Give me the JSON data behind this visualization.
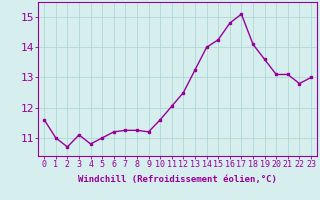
{
  "x": [
    0,
    1,
    2,
    3,
    4,
    5,
    6,
    7,
    8,
    9,
    10,
    11,
    12,
    13,
    14,
    15,
    16,
    17,
    18,
    19,
    20,
    21,
    22,
    23
  ],
  "y": [
    11.6,
    11.0,
    10.7,
    11.1,
    10.8,
    11.0,
    11.2,
    11.25,
    11.25,
    11.2,
    11.6,
    12.05,
    12.5,
    13.25,
    14.0,
    14.25,
    14.8,
    15.1,
    14.1,
    13.6,
    13.1,
    13.1,
    12.8,
    13.0
  ],
  "line_color": "#990099",
  "marker": "s",
  "marker_size": 2,
  "bg_color": "#d6eeee",
  "grid_color": "#b0d8d8",
  "xlabel": "Windchill (Refroidissement éolien,°C)",
  "xlabel_color": "#990099",
  "xlabel_fontsize": 6.5,
  "tick_color": "#990099",
  "tick_fontsize": 6,
  "ylim": [
    10.4,
    15.5
  ],
  "yticks": [
    11,
    12,
    13,
    14,
    15
  ],
  "xticks": [
    0,
    1,
    2,
    3,
    4,
    5,
    6,
    7,
    8,
    9,
    10,
    11,
    12,
    13,
    14,
    15,
    16,
    17,
    18,
    19,
    20,
    21,
    22,
    23
  ],
  "spine_color": "#990099",
  "line_width": 1.0
}
